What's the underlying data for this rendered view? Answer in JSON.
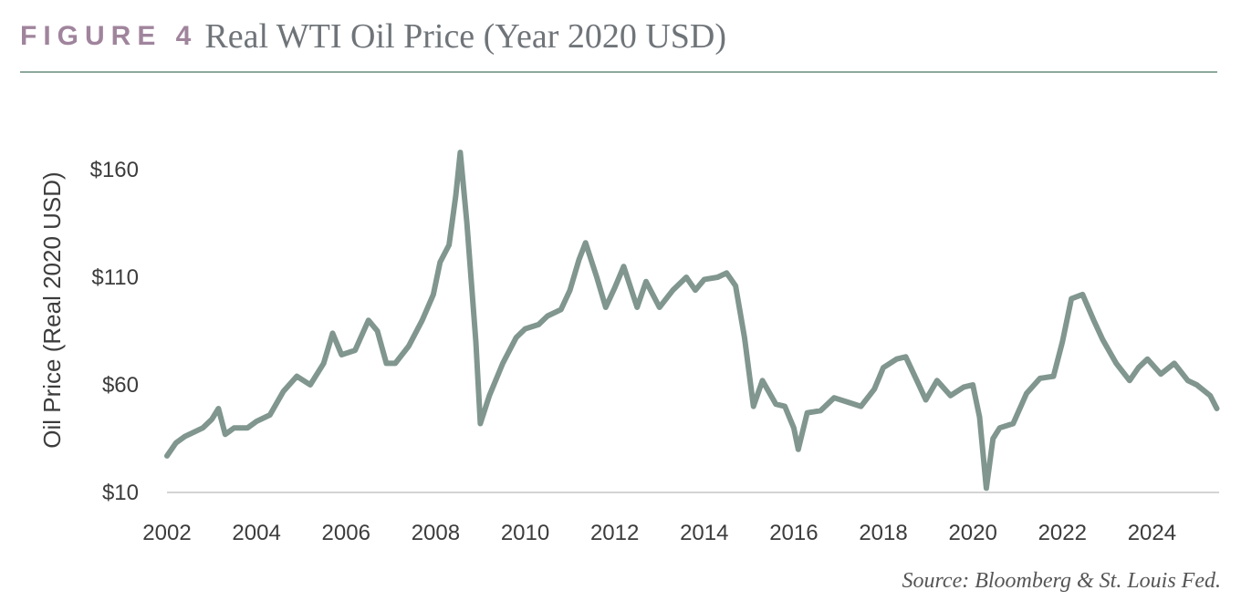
{
  "header": {
    "figure_label": "FIGURE 4",
    "title": "Real WTI Oil Price (Year 2020 USD)"
  },
  "colors": {
    "figure_label": "#a0849c",
    "rule": "#8fa89e",
    "series": "#80968f",
    "gridline": "#d4d4d4"
  },
  "source": "Source: Bloomberg & St. Louis Fed.",
  "chart_data": {
    "type": "line",
    "title": "",
    "xlabel": "",
    "ylabel": "Oil Price (Real 2020 USD)",
    "ylim": [
      10,
      170
    ],
    "xlim": [
      2002.0,
      2025.5
    ],
    "yticks": [
      10,
      60,
      110,
      160
    ],
    "ytick_labels": [
      "$10",
      "$60",
      "$110",
      "$160"
    ],
    "xticks": [
      2002,
      2004,
      2006,
      2008,
      2010,
      2012,
      2014,
      2016,
      2018,
      2020,
      2022,
      2024
    ],
    "xtick_labels": [
      "2002",
      "2004",
      "2006",
      "2008",
      "2010",
      "2012",
      "2014",
      "2016",
      "2018",
      "2020",
      "2022",
      "2024"
    ],
    "grid": "baseline only",
    "series": [
      {
        "x": [
          2002.0,
          2002.2,
          2002.4,
          2002.6,
          2002.8,
          2003.0,
          2003.15,
          2003.3,
          2003.5,
          2003.8,
          2004.0,
          2004.3,
          2004.6,
          2004.9,
          2005.2,
          2005.5,
          2005.7,
          2005.9,
          2006.2,
          2006.5,
          2006.7,
          2006.9,
          2007.1,
          2007.4,
          2007.7,
          2007.95,
          2008.1,
          2008.3,
          2008.45,
          2008.55,
          2008.7,
          2008.9,
          2009.0,
          2009.2,
          2009.5,
          2009.8,
          2010.0,
          2010.3,
          2010.5,
          2010.8,
          2011.0,
          2011.2,
          2011.35,
          2011.6,
          2011.8,
          2012.0,
          2012.2,
          2012.5,
          2012.7,
          2013.0,
          2013.3,
          2013.6,
          2013.8,
          2014.0,
          2014.3,
          2014.5,
          2014.7,
          2014.9,
          2015.1,
          2015.3,
          2015.6,
          2015.8,
          2016.0,
          2016.1,
          2016.3,
          2016.6,
          2016.9,
          2017.2,
          2017.5,
          2017.8,
          2018.0,
          2018.3,
          2018.5,
          2018.75,
          2018.95,
          2019.2,
          2019.5,
          2019.8,
          2020.0,
          2020.15,
          2020.3,
          2020.45,
          2020.6,
          2020.9,
          2021.2,
          2021.5,
          2021.8,
          2022.0,
          2022.2,
          2022.45,
          2022.7,
          2022.9,
          2023.2,
          2023.5,
          2023.7,
          2023.9,
          2024.2,
          2024.5,
          2024.8,
          2025.0,
          2025.3,
          2025.45
        ],
        "y": [
          27,
          33,
          36,
          38,
          40,
          44,
          49,
          37,
          40,
          40,
          43,
          46,
          57,
          64,
          60,
          70,
          84,
          74,
          76,
          90,
          85,
          70,
          70,
          78,
          90,
          102,
          117,
          125,
          148,
          168,
          135,
          80,
          42,
          55,
          70,
          82,
          86,
          88,
          92,
          95,
          104,
          118,
          126,
          110,
          96,
          105,
          115,
          96,
          108,
          96,
          104,
          110,
          104,
          109,
          110,
          112,
          106,
          82,
          50,
          62,
          51,
          50,
          40,
          30,
          47,
          48,
          54,
          52,
          50,
          58,
          68,
          72,
          73,
          62,
          53,
          62,
          55,
          59,
          60,
          45,
          12,
          35,
          40,
          42,
          56,
          63,
          64,
          80,
          100,
          102,
          90,
          81,
          70,
          62,
          68,
          72,
          65,
          70,
          62,
          60,
          55,
          49
        ]
      }
    ]
  }
}
